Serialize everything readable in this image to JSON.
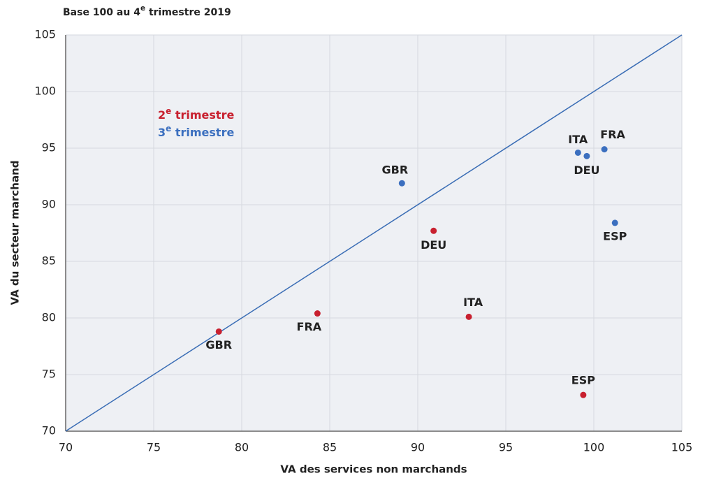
{
  "chart_data": {
    "type": "scatter",
    "title": "Base 100 au 4e trimestre 2019",
    "x_label": "VA des services non marchands",
    "y_label": "VA du secteur marchand",
    "xlim": [
      70,
      105
    ],
    "xticks": [
      70,
      75,
      80,
      85,
      90,
      95,
      100,
      105
    ],
    "ylim": [
      70,
      105
    ],
    "yticks": [
      70,
      75,
      80,
      85,
      90,
      95,
      100,
      105
    ],
    "grid": true,
    "diagonal": true,
    "diagonal_color": "#3a6db5",
    "series": [
      {
        "name": "2e trimestre",
        "color": "#c8202f",
        "labels": [
          "GBR",
          "FRA",
          "DEU",
          "ITA",
          "ESP"
        ],
        "x": [
          78.7,
          84.3,
          90.9,
          92.9,
          99.4
        ],
        "values": [
          78.8,
          80.4,
          87.7,
          80.1,
          73.2
        ]
      },
      {
        "name": "3e trimestre",
        "color": "#3b6fbf",
        "labels": [
          "GBR",
          "ITA",
          "DEU",
          "FRA",
          "ESP"
        ],
        "x": [
          89.1,
          99.1,
          99.6,
          100.6,
          101.2
        ],
        "values": [
          91.9,
          94.6,
          94.3,
          94.9,
          88.4
        ]
      }
    ]
  }
}
